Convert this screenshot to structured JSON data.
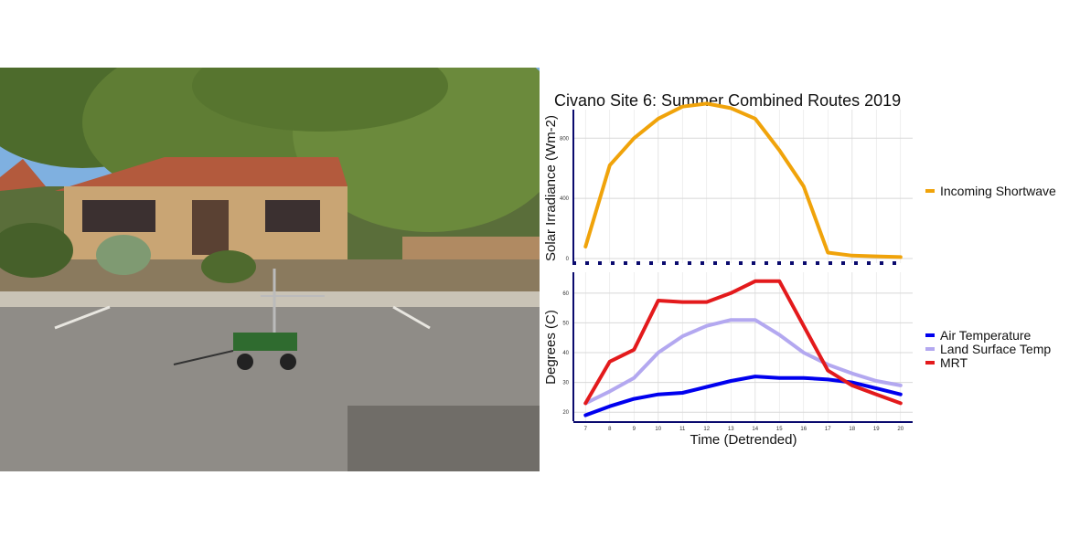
{
  "photo": {
    "description_icon": "photo-icon"
  },
  "chart_data": {
    "title": "Civano Site 6: Summer Combined Routes 2019",
    "xlabel": "Time (Detrended)",
    "x": [
      7,
      8,
      9,
      10,
      11,
      12,
      13,
      14,
      15,
      16,
      17,
      18,
      19,
      20
    ],
    "xlim": [
      6.5,
      20.5
    ],
    "panels": [
      {
        "type": "line",
        "ylabel": "Solar Irradiance (Wm-2)",
        "ylim": [
          -30,
          990
        ],
        "yticks": [
          0,
          400,
          800
        ],
        "legend_position": "right",
        "series": [
          {
            "name": "Incoming Shortwave",
            "color": "#F0A30A",
            "values": [
              80,
              620,
              800,
              930,
              1010,
              1030,
              1000,
              930,
              720,
              480,
              40,
              20,
              15,
              10
            ]
          }
        ]
      },
      {
        "type": "line",
        "ylabel": "Degrees (C)",
        "ylim": [
          17,
          67
        ],
        "yticks": [
          20,
          30,
          40,
          50,
          60
        ],
        "legend_position": "right",
        "series": [
          {
            "name": "Air Temperature",
            "color": "#0000EE",
            "values": [
              19,
              22,
              24.5,
              26,
              26.5,
              28.5,
              30.5,
              32,
              31.5,
              31.5,
              31,
              30,
              28,
              26
            ]
          },
          {
            "name": "Land Surface Temp",
            "color": "#B3A8F0",
            "values": [
              23,
              27,
              31.5,
              40,
              45.5,
              49,
              51,
              51,
              46,
              40,
              36,
              33,
              30.5,
              29
            ]
          },
          {
            "name": "MRT",
            "color": "#E31A1C",
            "values": [
              23,
              37,
              41,
              57.5,
              57,
              57,
              60,
              64,
              64,
              49,
              34,
              29,
              26,
              23
            ]
          }
        ]
      }
    ]
  }
}
